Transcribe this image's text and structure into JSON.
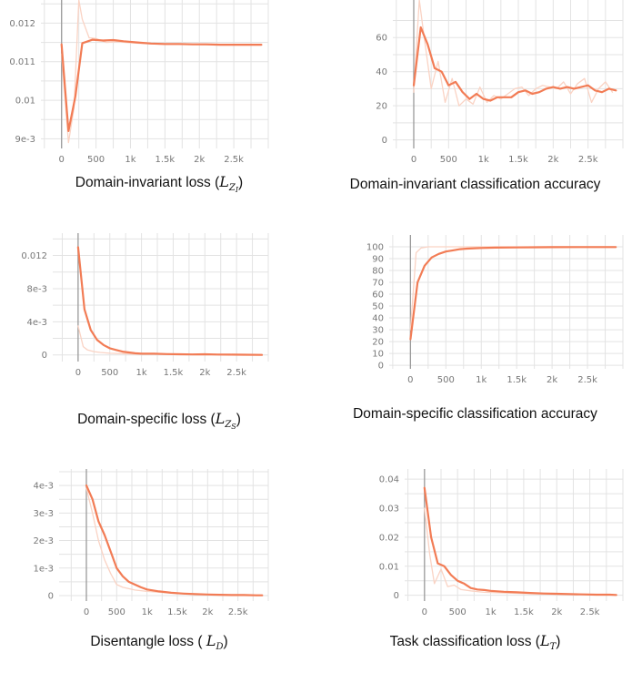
{
  "chart_data": [
    {
      "id": "zi-loss",
      "type": "line",
      "caption_text": "Domain-invariant loss (",
      "caption_math": "L",
      "caption_sub": "Z",
      "caption_subsub": "I",
      "caption_end": ")",
      "yticks": [
        0.009,
        0.01,
        0.011,
        0.012
      ],
      "ytick_labels": [
        "9e-3",
        "0.01",
        "0.011",
        "0.012"
      ],
      "ylim": [
        0.00875,
        0.0126
      ],
      "xticks": [
        0,
        500,
        1000,
        1500,
        2000,
        2500
      ],
      "xtick_labels": [
        "0",
        "500",
        "1k",
        "1.5k",
        "2k",
        "2.5k"
      ],
      "xlim": [
        -300,
        3000
      ],
      "series": [
        {
          "role": "smoothed",
          "x": [
            0,
            100,
            200,
            300,
            450,
            600,
            750,
            900,
            1100,
            1300,
            1500,
            1700,
            1900,
            2100,
            2300,
            2500,
            2700,
            2900
          ],
          "values": [
            0.01145,
            0.0092,
            0.0101,
            0.01148,
            0.01157,
            0.01155,
            0.01156,
            0.01153,
            0.0115,
            0.01147,
            0.01146,
            0.01146,
            0.01145,
            0.01145,
            0.01144,
            0.01144,
            0.01144,
            0.01144
          ]
        },
        {
          "role": "raw",
          "x": [
            0,
            100,
            180,
            250,
            300,
            400,
            500,
            650,
            800,
            1000,
            1200,
            1500,
            1800,
            2100,
            2400,
            2700,
            2900
          ],
          "values": [
            0.0112,
            0.0089,
            0.0098,
            0.0126,
            0.0121,
            0.01162,
            0.0116,
            0.0115,
            0.01152,
            0.01149,
            0.01147,
            0.01145,
            0.01145,
            0.01144,
            0.01144,
            0.01144,
            0.01144
          ]
        }
      ]
    },
    {
      "id": "zi-acc",
      "type": "line",
      "caption_text": "Domain-invariant classification accuracy",
      "yticks": [
        0,
        20,
        40,
        60
      ],
      "ytick_labels": [
        "0",
        "20",
        "40",
        "60"
      ],
      "ylim": [
        -5,
        82
      ],
      "xticks": [
        0,
        500,
        1000,
        1500,
        2000,
        2500
      ],
      "xtick_labels": [
        "0",
        "500",
        "1k",
        "1.5k",
        "2k",
        "2.5k"
      ],
      "xlim": [
        -300,
        3000
      ],
      "series": [
        {
          "role": "smoothed",
          "x": [
            0,
            100,
            200,
            300,
            400,
            500,
            600,
            700,
            800,
            900,
            1000,
            1100,
            1200,
            1300,
            1400,
            1500,
            1600,
            1700,
            1800,
            1900,
            2000,
            2100,
            2200,
            2300,
            2400,
            2500,
            2600,
            2700,
            2800,
            2900
          ],
          "values": [
            32,
            66,
            56,
            42,
            40,
            32,
            34,
            28,
            24,
            27,
            24,
            23,
            25,
            25,
            25,
            28,
            29,
            27,
            28,
            30,
            31,
            30,
            31,
            30,
            31,
            32,
            29,
            28,
            30,
            29
          ]
        },
        {
          "role": "raw",
          "x": [
            0,
            80,
            150,
            250,
            350,
            450,
            550,
            650,
            750,
            850,
            950,
            1050,
            1150,
            1250,
            1350,
            1450,
            1550,
            1650,
            1750,
            1850,
            1950,
            2050,
            2150,
            2250,
            2350,
            2450,
            2550,
            2650,
            2750,
            2850
          ],
          "values": [
            28,
            82,
            60,
            30,
            46,
            22,
            36,
            20,
            24,
            21,
            31,
            22,
            26,
            24,
            27,
            30,
            31,
            26,
            30,
            32,
            31,
            30,
            34,
            27,
            33,
            36,
            22,
            30,
            34,
            28
          ]
        }
      ]
    },
    {
      "id": "zs-loss",
      "type": "line",
      "caption_text": "Domain-specific loss (",
      "caption_math": "L",
      "caption_sub": "Z",
      "caption_subsub": "S",
      "caption_end": ")",
      "yticks": [
        0,
        0.004,
        0.008,
        0.012
      ],
      "ytick_labels": [
        "0",
        "4e-3",
        "8e-3",
        "0.012"
      ],
      "ylim": [
        -0.0008,
        0.0147
      ],
      "xticks": [
        0,
        500,
        1000,
        1500,
        2000,
        2500
      ],
      "xtick_labels": [
        "0",
        "500",
        "1k",
        "1.5k",
        "2k",
        "2.5k"
      ],
      "xlim": [
        -400,
        3000
      ],
      "series": [
        {
          "role": "smoothed",
          "x": [
            0,
            100,
            200,
            300,
            400,
            500,
            600,
            700,
            800,
            900,
            1000,
            1200,
            1400,
            1600,
            1800,
            2000,
            2200,
            2400,
            2600,
            2900
          ],
          "values": [
            0.013,
            0.0055,
            0.003,
            0.0018,
            0.0012,
            0.0008,
            0.0006,
            0.0004,
            0.0003,
            0.0002,
            0.00015,
            0.00015,
            0.0001,
            8e-05,
            6e-05,
            8e-05,
            5e-05,
            3e-05,
            2e-05,
            0.0
          ]
        },
        {
          "role": "raw",
          "x": [
            0,
            80,
            150,
            250,
            350,
            500,
            700,
            900,
            1100,
            1400,
            1700,
            2000,
            2400,
            2900
          ],
          "values": [
            0.0035,
            0.001,
            0.0006,
            0.0004,
            0.0003,
            0.0002,
            0.00015,
            0.0001,
            0.0001,
            8e-05,
            5e-05,
            4e-05,
            3e-05,
            2e-05
          ]
        }
      ]
    },
    {
      "id": "zs-acc",
      "type": "line",
      "caption_text": "Domain-specific classification accuracy",
      "yticks": [
        0,
        10,
        20,
        30,
        40,
        50,
        60,
        70,
        80,
        90,
        100
      ],
      "ytick_labels": [
        "0",
        "10",
        "20",
        "30",
        "40",
        "50",
        "60",
        "70",
        "80",
        "90",
        "100"
      ],
      "ylim": [
        -3,
        110
      ],
      "xticks": [
        0,
        500,
        1000,
        1500,
        2000,
        2500
      ],
      "xtick_labels": [
        "0",
        "500",
        "1k",
        "1.5k",
        "2k",
        "2.5k"
      ],
      "xlim": [
        -300,
        3000
      ],
      "series": [
        {
          "role": "smoothed",
          "x": [
            0,
            100,
            200,
            300,
            400,
            500,
            600,
            700,
            800,
            1000,
            1200,
            1500,
            1800,
            2000,
            2500,
            2900
          ],
          "values": [
            22,
            70,
            84,
            91,
            94,
            96,
            97,
            98,
            98.5,
            99,
            99.3,
            99.5,
            99.6,
            99.7,
            99.8,
            99.8
          ]
        },
        {
          "role": "raw",
          "x": [
            0,
            80,
            150,
            250,
            400,
            600,
            900,
            1300,
            1800,
            2400,
            2900
          ],
          "values": [
            30,
            95,
            99,
            100,
            100,
            100,
            100,
            100,
            100,
            100,
            100
          ]
        }
      ]
    },
    {
      "id": "d-loss",
      "type": "line",
      "caption_text": "Disentangle loss ( ",
      "caption_math": "L",
      "caption_sub": "D",
      "caption_end": ")",
      "yticks": [
        0,
        0.001,
        0.002,
        0.003,
        0.004
      ],
      "ytick_labels": [
        "0",
        "1e-3",
        "2e-3",
        "3e-3",
        "4e-3"
      ],
      "ylim": [
        -0.0002,
        0.0046
      ],
      "xticks": [
        0,
        500,
        1000,
        1500,
        2000,
        2500
      ],
      "xtick_labels": [
        "0",
        "500",
        "1k",
        "1.5k",
        "2k",
        "2.5k"
      ],
      "xlim": [
        -450,
        3000
      ],
      "series": [
        {
          "role": "smoothed",
          "x": [
            0,
            100,
            200,
            300,
            400,
            500,
            600,
            700,
            800,
            900,
            1000,
            1200,
            1400,
            1600,
            1800,
            2000,
            2200,
            2400,
            2600,
            2800,
            2900
          ],
          "values": [
            0.004,
            0.0035,
            0.0027,
            0.0022,
            0.0016,
            0.001,
            0.0007,
            0.0005,
            0.0004,
            0.0003,
            0.00022,
            0.00015,
            0.0001,
            7e-05,
            5e-05,
            4e-05,
            3e-05,
            2e-05,
            2e-05,
            1e-05,
            1e-05
          ]
        },
        {
          "role": "raw",
          "x": [
            0,
            100,
            200,
            300,
            400,
            500,
            600,
            800,
            1000,
            1300,
            1700,
            2200,
            2900
          ],
          "values": [
            0.0039,
            0.003,
            0.002,
            0.0013,
            0.0008,
            0.0004,
            0.0003,
            0.0002,
            0.00015,
            0.0001,
            5e-05,
            3e-05,
            1e-05
          ]
        }
      ]
    },
    {
      "id": "t-loss",
      "type": "line",
      "caption_text": "Task classification loss (",
      "caption_math": "L",
      "caption_sub": "T",
      "caption_end": ")",
      "yticks": [
        0,
        0.01,
        0.02,
        0.03,
        0.04
      ],
      "ytick_labels": [
        "0",
        "0.01",
        "0.02",
        "0.03",
        "0.04"
      ],
      "ylim": [
        -0.002,
        0.0435
      ],
      "xticks": [
        0,
        500,
        1000,
        1500,
        2000,
        2500
      ],
      "xtick_labels": [
        "0",
        "500",
        "1k",
        "1.5k",
        "2k",
        "2.5k"
      ],
      "xlim": [
        -300,
        3000
      ],
      "series": [
        {
          "role": "smoothed",
          "x": [
            0,
            100,
            200,
            300,
            400,
            500,
            600,
            700,
            800,
            900,
            1000,
            1200,
            1400,
            1600,
            1800,
            2000,
            2200,
            2400,
            2600,
            2800,
            2900
          ],
          "values": [
            0.037,
            0.02,
            0.011,
            0.01,
            0.007,
            0.005,
            0.004,
            0.0025,
            0.002,
            0.0018,
            0.0015,
            0.0012,
            0.001,
            0.0008,
            0.0006,
            0.0005,
            0.0004,
            0.0003,
            0.0002,
            0.0002,
            0.0001
          ]
        },
        {
          "role": "raw",
          "x": [
            0,
            80,
            150,
            250,
            350,
            450,
            550,
            700,
            900,
            1200,
            1600,
            2000,
            2500,
            2900
          ],
          "values": [
            0.03,
            0.014,
            0.004,
            0.009,
            0.003,
            0.0035,
            0.002,
            0.0015,
            0.001,
            0.0008,
            0.0005,
            0.0003,
            0.0002,
            0.0001
          ]
        }
      ]
    }
  ],
  "colors": {
    "smoothed": "#f27c55",
    "raw": "#fad3c4",
    "grid": "#e3e3e3",
    "axis": "#9a9a9a",
    "tick_text": "#777777"
  }
}
